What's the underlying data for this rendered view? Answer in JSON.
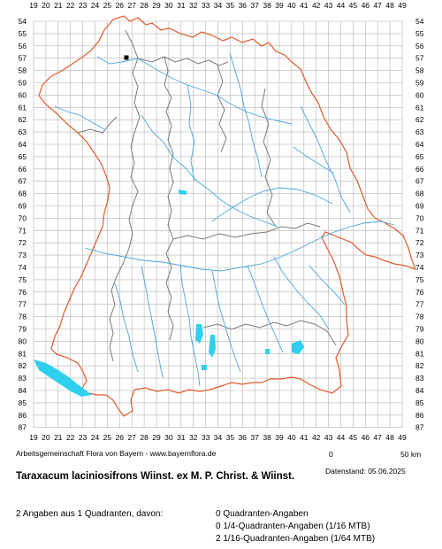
{
  "map": {
    "x_ticks": [
      "19",
      "20",
      "21",
      "22",
      "23",
      "24",
      "25",
      "26",
      "27",
      "28",
      "29",
      "30",
      "31",
      "32",
      "33",
      "34",
      "35",
      "36",
      "37",
      "38",
      "39",
      "40",
      "41",
      "42",
      "43",
      "44",
      "45",
      "46",
      "47",
      "48",
      "49"
    ],
    "y_ticks": [
      "54",
      "55",
      "56",
      "57",
      "58",
      "59",
      "60",
      "61",
      "62",
      "63",
      "64",
      "65",
      "66",
      "67",
      "68",
      "69",
      "70",
      "71",
      "72",
      "73",
      "74",
      "75",
      "76",
      "77",
      "78",
      "79",
      "80",
      "81",
      "82",
      "83",
      "84",
      "85",
      "86",
      "87"
    ],
    "colors": {
      "grid": "#b4b4b4",
      "state_border": "#e05a2b",
      "district_border": "#7a7a7a",
      "rivers": "#4aa6e0",
      "lakes": "#2fd0ee",
      "marker": "#000000"
    },
    "occurrences": [
      {
        "type": "1/16-Quadrant",
        "col": "26",
        "row": "57"
      }
    ]
  },
  "credit": "Arbeitsgemeinschaft Flora von Bayern - www.bayernflora.de",
  "scale": {
    "zero": "0",
    "max": "50 km"
  },
  "datestamp": "Datenstand: 05.06.2025",
  "title": "Taraxacum laciniosifrons Wiinst. ex M. P. Christ. & Wiinst.",
  "summary": "2 Angaben aus 1 Quadranten, davon:",
  "categories": [
    "0 Quadranten-Angaben",
    "0 1/4-Quadranten-Angaben (1/16 MTB)",
    "2 1/16-Quadranten-Angaben (1/64 MTB)"
  ]
}
